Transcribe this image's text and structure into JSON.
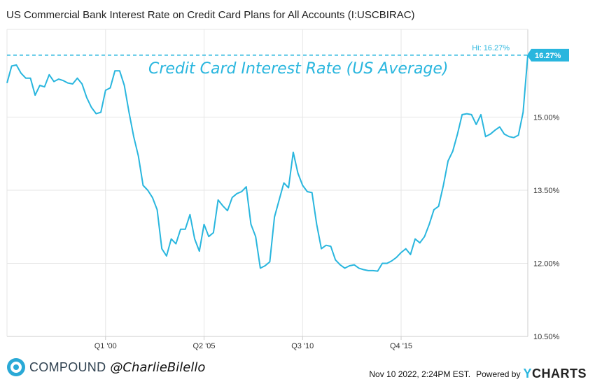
{
  "header": {
    "title": "US Commercial Bank Interest Rate on Credit Card Plans for All Accounts (I:USCBIRAC)"
  },
  "annotation": {
    "text": "Credit Card Interest Rate (US Average)"
  },
  "footer": {
    "brand": "COMPOUND",
    "handle": "@CharlieBilello",
    "timestamp": "Nov 10 2022, 2:24PM EST.",
    "powered_by": "Powered by",
    "ycharts_y": "Y",
    "ycharts_rest": "CHARTS"
  },
  "colors": {
    "line": "#29b6de",
    "grid": "#e6e6e6",
    "axis": "#cccccc",
    "text": "#222222"
  },
  "chart_data": {
    "type": "line",
    "title": "US Commercial Bank Interest Rate on Credit Card Plans for All Accounts (I:USCBIRAC)",
    "ylim": [
      10.5,
      16.8
    ],
    "y_ticks": [
      {
        "value": 10.5,
        "label": "10.50%"
      },
      {
        "value": 12.0,
        "label": "12.00%"
      },
      {
        "value": 13.5,
        "label": "13.50%"
      },
      {
        "value": 15.0,
        "label": "15.00%"
      }
    ],
    "x_ticks": [
      {
        "value": 2000.0,
        "label": "Q1 '00"
      },
      {
        "value": 2005.25,
        "label": "Q2 '05"
      },
      {
        "value": 2010.5,
        "label": "Q3 '10"
      },
      {
        "value": 2015.75,
        "label": "Q4 '15"
      }
    ],
    "xlim": [
      1994.75,
      2022.5
    ],
    "high": {
      "value": 16.27,
      "label": "Hi: 16.27%"
    },
    "last_value_label": "16.27%",
    "grid": true,
    "series": [
      {
        "points": [
          [
            1994.75,
            15.7
          ],
          [
            1995.0,
            16.05
          ],
          [
            1995.25,
            16.07
          ],
          [
            1995.5,
            15.9
          ],
          [
            1995.75,
            15.8
          ],
          [
            1996.0,
            15.8
          ],
          [
            1996.25,
            15.45
          ],
          [
            1996.5,
            15.65
          ],
          [
            1996.75,
            15.62
          ],
          [
            1997.0,
            15.87
          ],
          [
            1997.25,
            15.73
          ],
          [
            1997.5,
            15.78
          ],
          [
            1997.75,
            15.75
          ],
          [
            1998.0,
            15.7
          ],
          [
            1998.25,
            15.68
          ],
          [
            1998.5,
            15.8
          ],
          [
            1998.75,
            15.68
          ],
          [
            1999.0,
            15.4
          ],
          [
            1999.25,
            15.2
          ],
          [
            1999.5,
            15.07
          ],
          [
            1999.75,
            15.1
          ],
          [
            2000.0,
            15.55
          ],
          [
            2000.25,
            15.6
          ],
          [
            2000.5,
            15.95
          ],
          [
            2000.75,
            15.95
          ],
          [
            2001.0,
            15.65
          ],
          [
            2001.25,
            15.1
          ],
          [
            2001.5,
            14.6
          ],
          [
            2001.75,
            14.2
          ],
          [
            2002.0,
            13.6
          ],
          [
            2002.25,
            13.5
          ],
          [
            2002.5,
            13.35
          ],
          [
            2002.75,
            13.1
          ],
          [
            2003.0,
            12.3
          ],
          [
            2003.25,
            12.15
          ],
          [
            2003.5,
            12.5
          ],
          [
            2003.75,
            12.4
          ],
          [
            2004.0,
            12.7
          ],
          [
            2004.25,
            12.7
          ],
          [
            2004.5,
            13.0
          ],
          [
            2004.75,
            12.5
          ],
          [
            2005.0,
            12.25
          ],
          [
            2005.25,
            12.8
          ],
          [
            2005.5,
            12.55
          ],
          [
            2005.75,
            12.63
          ],
          [
            2006.0,
            13.3
          ],
          [
            2006.25,
            13.18
          ],
          [
            2006.5,
            13.08
          ],
          [
            2006.75,
            13.35
          ],
          [
            2007.0,
            13.43
          ],
          [
            2007.25,
            13.47
          ],
          [
            2007.5,
            13.57
          ],
          [
            2007.75,
            12.8
          ],
          [
            2008.0,
            12.55
          ],
          [
            2008.25,
            11.9
          ],
          [
            2008.5,
            11.95
          ],
          [
            2008.75,
            12.03
          ],
          [
            2009.0,
            12.95
          ],
          [
            2009.25,
            13.3
          ],
          [
            2009.5,
            13.65
          ],
          [
            2009.75,
            13.55
          ],
          [
            2010.0,
            14.28
          ],
          [
            2010.25,
            13.85
          ],
          [
            2010.5,
            13.6
          ],
          [
            2010.75,
            13.47
          ],
          [
            2011.0,
            13.45
          ],
          [
            2011.25,
            12.8
          ],
          [
            2011.5,
            12.3
          ],
          [
            2011.75,
            12.37
          ],
          [
            2012.0,
            12.35
          ],
          [
            2012.25,
            12.07
          ],
          [
            2012.5,
            11.97
          ],
          [
            2012.75,
            11.9
          ],
          [
            2013.0,
            11.95
          ],
          [
            2013.25,
            11.97
          ],
          [
            2013.5,
            11.9
          ],
          [
            2013.75,
            11.87
          ],
          [
            2014.0,
            11.85
          ],
          [
            2014.25,
            11.85
          ],
          [
            2014.5,
            11.84
          ],
          [
            2014.75,
            12.0
          ],
          [
            2015.0,
            12.0
          ],
          [
            2015.25,
            12.05
          ],
          [
            2015.5,
            12.12
          ],
          [
            2015.75,
            12.22
          ],
          [
            2016.0,
            12.3
          ],
          [
            2016.25,
            12.18
          ],
          [
            2016.5,
            12.5
          ],
          [
            2016.75,
            12.42
          ],
          [
            2017.0,
            12.55
          ],
          [
            2017.25,
            12.8
          ],
          [
            2017.5,
            13.1
          ],
          [
            2017.75,
            13.17
          ],
          [
            2018.0,
            13.6
          ],
          [
            2018.25,
            14.1
          ],
          [
            2018.5,
            14.3
          ],
          [
            2018.75,
            14.65
          ],
          [
            2019.0,
            15.05
          ],
          [
            2019.25,
            15.07
          ],
          [
            2019.5,
            15.05
          ],
          [
            2019.75,
            14.85
          ],
          [
            2020.0,
            15.05
          ],
          [
            2020.25,
            14.6
          ],
          [
            2020.5,
            14.65
          ],
          [
            2020.75,
            14.73
          ],
          [
            2021.0,
            14.8
          ],
          [
            2021.25,
            14.65
          ],
          [
            2021.5,
            14.6
          ],
          [
            2021.75,
            14.58
          ],
          [
            2022.0,
            14.63
          ],
          [
            2022.25,
            15.1
          ],
          [
            2022.5,
            16.27
          ]
        ]
      }
    ]
  }
}
